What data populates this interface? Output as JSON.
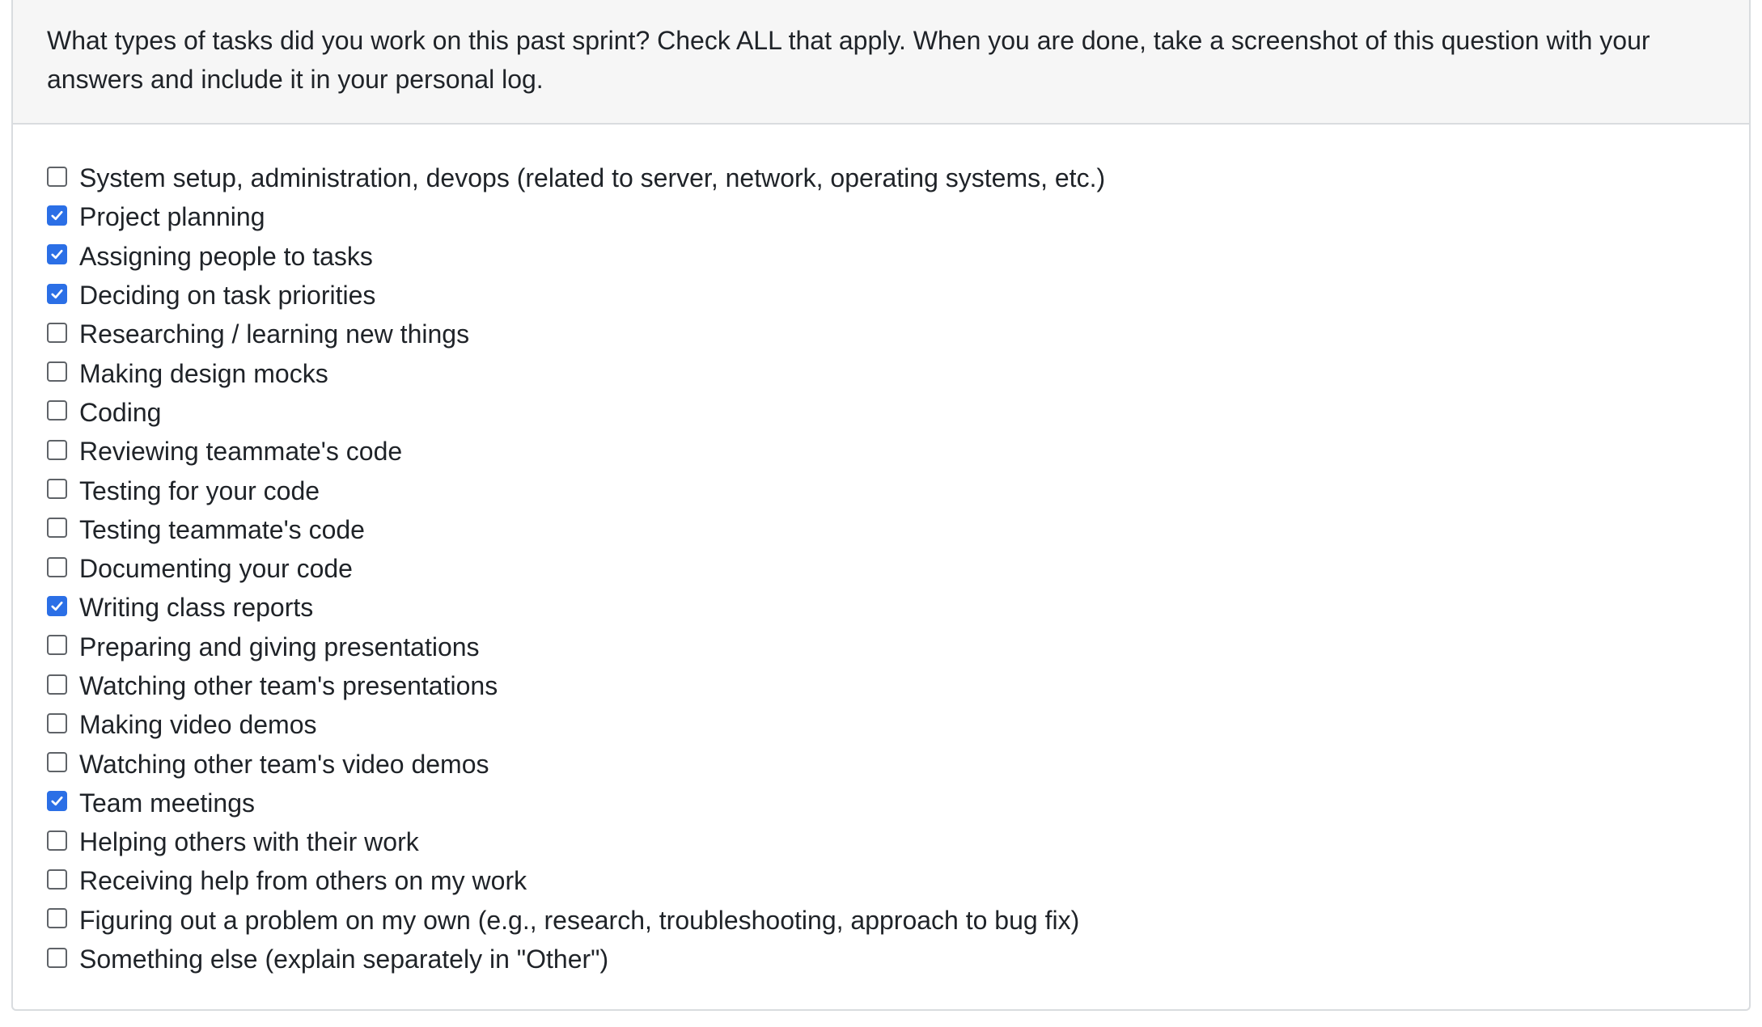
{
  "question": {
    "text": "What types of tasks did you work on this past sprint? Check ALL that apply. When you are done, take a screenshot of this question with your answers and include it in your personal log."
  },
  "colors": {
    "checked": "#2b6fe6",
    "header_bg": "#f6f6f6",
    "border": "#d9dcdf"
  },
  "options": [
    {
      "label": "System setup, administration, devops (related to server, network, operating systems, etc.)",
      "checked": false
    },
    {
      "label": "Project planning",
      "checked": true
    },
    {
      "label": "Assigning people to tasks",
      "checked": true
    },
    {
      "label": "Deciding on task priorities",
      "checked": true
    },
    {
      "label": "Researching / learning new things",
      "checked": false
    },
    {
      "label": "Making design mocks",
      "checked": false
    },
    {
      "label": "Coding",
      "checked": false
    },
    {
      "label": "Reviewing teammate's code",
      "checked": false
    },
    {
      "label": "Testing for your code",
      "checked": false
    },
    {
      "label": "Testing teammate's code",
      "checked": false
    },
    {
      "label": "Documenting your code",
      "checked": false
    },
    {
      "label": "Writing class reports",
      "checked": true
    },
    {
      "label": "Preparing and giving presentations",
      "checked": false
    },
    {
      "label": "Watching other team's presentations",
      "checked": false
    },
    {
      "label": "Making video demos",
      "checked": false
    },
    {
      "label": "Watching other team's video demos",
      "checked": false
    },
    {
      "label": "Team meetings",
      "checked": true
    },
    {
      "label": "Helping others with their work",
      "checked": false
    },
    {
      "label": "Receiving help from others on my work",
      "checked": false
    },
    {
      "label": "Figuring out a problem on my own (e.g., research, troubleshooting, approach to bug fix)",
      "checked": false
    },
    {
      "label": "Something else (explain separately in \"Other\")",
      "checked": false
    }
  ]
}
